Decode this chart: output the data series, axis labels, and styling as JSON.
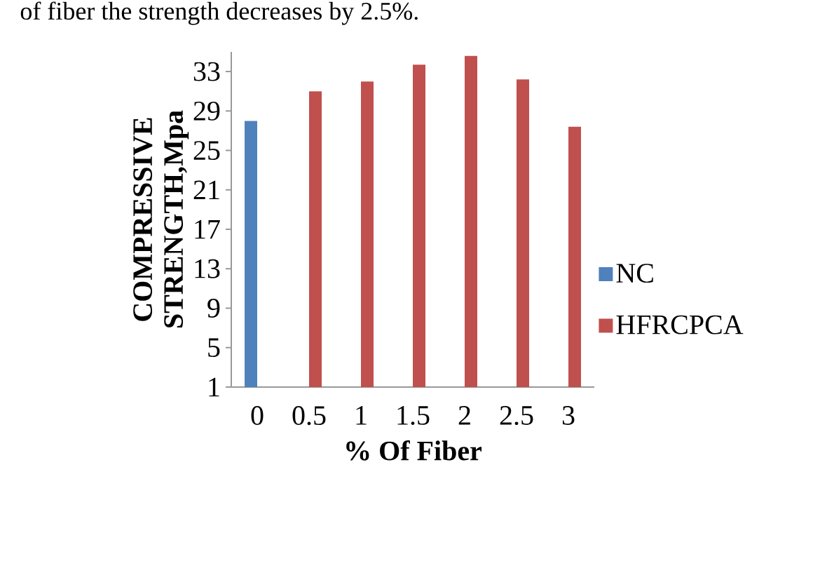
{
  "chart_data": {
    "type": "bar",
    "annotations": [
      "of fiber the strength decreases by 2.5%."
    ],
    "xlabel": "% Of Fiber",
    "ylabel": "COMPRESSIVE STRENGTH,Mpa",
    "categories": [
      "0",
      "0.5",
      "1",
      "1.5",
      "2",
      "2.5",
      "3"
    ],
    "series": [
      {
        "name": "NC",
        "color": "#4f81bd",
        "values": [
          28,
          null,
          null,
          null,
          null,
          null,
          null
        ]
      },
      {
        "name": "HFRCPCA",
        "color": "#c0504d",
        "values": [
          null,
          31,
          32,
          33.7,
          34.6,
          32.2,
          27.4
        ]
      }
    ],
    "ylim": [
      1,
      35
    ],
    "yticks": [
      1,
      5,
      9,
      13,
      17,
      21,
      25,
      29,
      33
    ],
    "legend": "right"
  }
}
